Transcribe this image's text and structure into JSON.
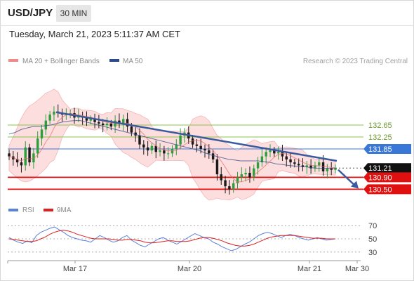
{
  "header": {
    "symbol": "USD/JPY",
    "timeframe": "30 MIN",
    "timestamp": "Tuesday, March 21, 2023 5:11:37 AM CET"
  },
  "legend": {
    "bollinger": {
      "label": "MA 20 + Bollinger Bands",
      "color": "#f08a8a"
    },
    "ma50": {
      "label": "MA 50",
      "color": "#2e4a8a"
    },
    "credit": "Research © 2023 Trading Central",
    "rsi": {
      "label": "RSI",
      "color": "#5b82d9"
    },
    "rsi_ma": {
      "label": "9MA",
      "color": "#e02020"
    }
  },
  "colors": {
    "up": "#2e9e3e",
    "down": "#1a1a1a",
    "band": "#fdd8d8",
    "trend": "#3a5a9e",
    "green_level": "#8bc34a",
    "blue_level": "#3a78d8",
    "red_level": "#e01010",
    "current_badge": "#111111"
  },
  "chart_data": {
    "type": "candlestick",
    "x_ticks": [
      "Mar 17",
      "Mar 20",
      "Mar 21",
      "Mar 30"
    ],
    "price_levels": [
      {
        "value": 132.65,
        "label": "132.65",
        "kind": "resistance-2"
      },
      {
        "value": 132.25,
        "label": "132.25",
        "kind": "resistance-1"
      },
      {
        "value": 131.85,
        "label": "131.85",
        "kind": "pivot"
      },
      {
        "value": 131.21,
        "label": "131.21",
        "kind": "last-price"
      },
      {
        "value": 130.9,
        "label": "130.90",
        "kind": "support-1"
      },
      {
        "value": 130.5,
        "label": "130.50",
        "kind": "support-2"
      }
    ],
    "rsi_ticks": [
      "70",
      "50",
      "30"
    ],
    "price_closes": [
      131.6,
      131.5,
      131.4,
      131.3,
      131.9,
      131.4,
      131.7,
      132.2,
      132.5,
      132.8,
      133.0,
      133.1,
      133.05,
      133.0,
      133.0,
      133.05,
      132.9,
      132.95,
      132.9,
      132.8,
      132.85,
      132.75,
      132.7,
      132.65,
      132.7,
      132.6,
      132.8,
      132.7,
      132.85,
      132.6,
      132.4,
      132.3,
      132.0,
      131.9,
      131.8,
      131.95,
      131.75,
      131.8,
      131.7,
      131.7,
      131.85,
      132.0,
      132.3,
      132.4,
      132.2,
      132.0,
      131.95,
      131.85,
      131.8,
      131.7,
      131.5,
      131.0,
      130.8,
      130.6,
      130.5,
      130.7,
      130.9,
      131.0,
      131.05,
      130.9,
      131.2,
      131.4,
      131.6,
      131.75,
      131.8,
      131.7,
      131.75,
      131.6,
      131.5,
      131.4,
      131.35,
      131.3,
      131.25,
      131.3,
      131.2,
      131.3,
      131.4,
      131.1,
      131.2,
      131.15,
      131.21
    ],
    "ma50": [
      132.35,
      132.4,
      132.5,
      132.55,
      132.6,
      132.6,
      132.62,
      132.65,
      132.7,
      132.75,
      132.78,
      132.8,
      132.8,
      132.75,
      132.7,
      132.65,
      132.6,
      132.55,
      132.5,
      132.45,
      132.4,
      132.35,
      132.3,
      132.25,
      132.2,
      132.15,
      132.1,
      132.05,
      132.0,
      131.95,
      131.9,
      131.85,
      131.8,
      131.72,
      131.65,
      131.6,
      131.55,
      131.5,
      131.48,
      131.45,
      131.45,
      131.45,
      131.45,
      131.42,
      131.4,
      131.35,
      131.33,
      131.3,
      131.28,
      131.25,
      131.25,
      131.22,
      131.2,
      131.2,
      131.2,
      131.21
    ],
    "resistance_trendline": [
      [
        "Mar 16 (early)",
        133.08
      ],
      [
        "Mar 21",
        131.45
      ]
    ],
    "rsi_values": [
      52,
      48,
      45,
      43,
      47,
      44,
      55,
      60,
      63,
      66,
      68,
      64,
      60,
      55,
      52,
      50,
      48,
      47,
      45,
      50,
      55,
      52,
      48,
      45,
      47,
      52,
      55,
      48,
      44,
      40,
      38,
      42,
      46,
      50,
      52,
      48,
      45,
      42,
      46,
      50,
      54,
      58,
      55,
      52,
      50,
      45,
      42,
      38,
      35,
      32,
      34,
      38,
      42,
      45,
      50,
      55,
      58,
      60,
      58,
      55,
      52,
      55,
      57,
      55,
      52,
      50,
      48,
      50,
      52,
      50,
      48,
      49,
      50
    ],
    "rsi_ma": [
      50,
      49,
      48,
      47,
      46,
      46,
      47,
      50,
      53,
      57,
      60,
      62,
      63,
      62,
      60,
      57,
      55,
      53,
      51,
      50,
      50,
      50,
      50,
      49,
      48,
      48,
      49,
      49,
      48,
      47,
      45,
      44,
      44,
      45,
      46,
      47,
      47,
      46,
      46,
      46,
      47,
      49,
      51,
      52,
      52,
      51,
      49,
      47,
      44,
      42,
      40,
      39,
      39,
      40,
      42,
      45,
      48,
      51,
      53,
      54,
      55,
      55,
      55,
      55,
      54,
      53,
      52,
      51,
      51,
      51,
      50,
      50,
      50
    ]
  }
}
